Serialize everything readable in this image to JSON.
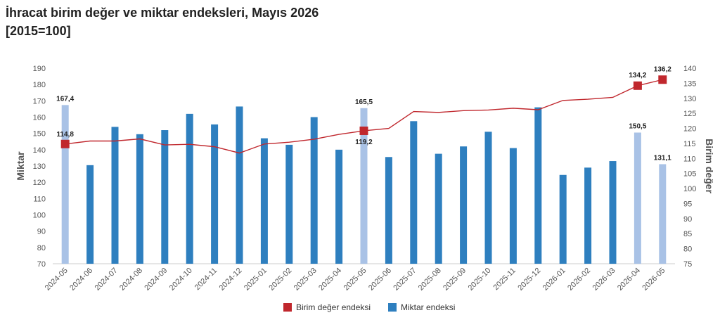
{
  "header": {
    "title": "İhracat birim değer ve miktar endeksleri, Mayıs 2026",
    "subtitle": "[2015=100]"
  },
  "chart_data": {
    "type": "bar",
    "title": "İhracat birim değer ve miktar endeksleri, Mayıs 2026",
    "subtitle": "[2015=100]",
    "categories": [
      "2024-05",
      "2024-06",
      "2024-07",
      "2024-08",
      "2024-09",
      "2024-10",
      "2024-11",
      "2024-12",
      "2025-01",
      "2025-02",
      "2025-03",
      "2025-04",
      "2025-05",
      "2025-06",
      "2025-07",
      "2025-08",
      "2025-09",
      "2025-10",
      "2025-11",
      "2025-12",
      "2026-01",
      "2026-02",
      "2026-03",
      "2026-04",
      "2026-05"
    ],
    "ylabel_left": "Miktar",
    "ylabel_right": "Birim değer",
    "ylim_left": [
      70,
      190
    ],
    "ylim_right": [
      75,
      140
    ],
    "yticks_left": [
      70,
      80,
      90,
      100,
      110,
      120,
      130,
      140,
      150,
      160,
      170,
      180,
      190
    ],
    "yticks_right": [
      75,
      80,
      85,
      90,
      95,
      100,
      105,
      110,
      115,
      120,
      125,
      130,
      135,
      140
    ],
    "grid": false,
    "legend_position": "bottom",
    "series": [
      {
        "name": "Miktar endeksi",
        "kind": "bar",
        "axis": "left",
        "color": "#2e7fbf",
        "highlight_color": "#a9c2e6",
        "values": [
          167.4,
          130.5,
          154.0,
          149.5,
          152.0,
          162.0,
          155.5,
          166.5,
          147.0,
          143.0,
          160.0,
          140.0,
          165.5,
          135.5,
          157.5,
          137.5,
          142.0,
          151.0,
          141.0,
          166.0,
          124.5,
          129.0,
          133.0,
          150.5,
          131.1
        ],
        "highlighted": [
          true,
          false,
          false,
          false,
          false,
          false,
          false,
          false,
          false,
          false,
          false,
          false,
          true,
          false,
          false,
          false,
          false,
          false,
          false,
          false,
          false,
          false,
          false,
          true,
          true
        ],
        "labels": [
          "167,4",
          "",
          "",
          "",
          "",
          "",
          "",
          "",
          "",
          "",
          "",
          "",
          "165,5",
          "",
          "",
          "",
          "",
          "",
          "",
          "",
          "",
          "",
          "",
          "150,5",
          "131,1"
        ]
      },
      {
        "name": "Birim değer endeksi",
        "kind": "line",
        "axis": "right",
        "color": "#c0272d",
        "values": [
          114.8,
          115.8,
          115.8,
          116.5,
          114.5,
          114.7,
          113.9,
          111.8,
          114.8,
          115.4,
          116.4,
          118.0,
          119.2,
          120.0,
          125.6,
          125.3,
          125.9,
          126.1,
          126.7,
          126.2,
          129.3,
          129.7,
          130.3,
          134.2,
          136.2
        ],
        "markers": [
          true,
          false,
          false,
          false,
          false,
          false,
          false,
          false,
          false,
          false,
          false,
          false,
          true,
          false,
          false,
          false,
          false,
          false,
          false,
          false,
          false,
          false,
          false,
          true,
          true
        ],
        "labels": [
          "114,8",
          "",
          "",
          "",
          "",
          "",
          "",
          "",
          "",
          "",
          "",
          "",
          "119,2",
          "",
          "",
          "",
          "",
          "",
          "",
          "",
          "",
          "",
          "",
          "134,2",
          "136,2"
        ]
      }
    ]
  }
}
